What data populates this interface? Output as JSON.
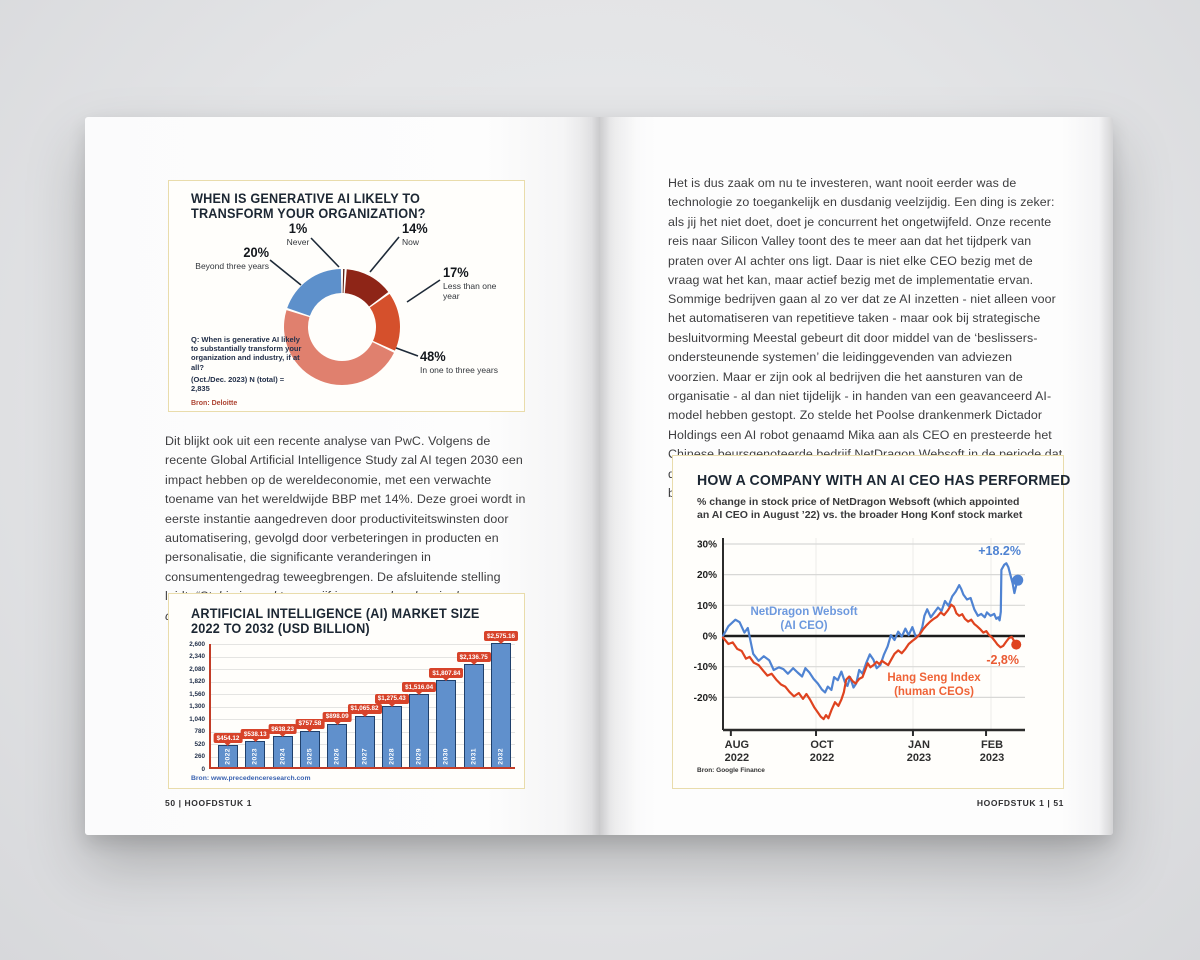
{
  "book": {
    "left_footer": "50 | HOOFDSTUK 1",
    "right_footer": "HOOFDSTUK 1 | 51"
  },
  "left_page": {
    "body": {
      "text": "Dit blijkt ook uit een recente analyse van PwC. Volgens de recente Global Artificial Intelligence Study zal AI tegen 2030 een impact hebben op de wereldeconomie, met een verwachte toename van het wereldwijde BBP met 14%. Deze groei wordt in eerste instantie aangedreven door productiviteitswinsten door automatisering, gevolgd door verbeteringen in producten en personalisatie, die significante veranderingen in consumentengedrag teweegbrengen. De afsluitende stelling luidt: ",
      "quote": "“Stel je je markt over vijf jaar voor: hoe kun je de capaciteiten creëren om te concurreren?”"
    }
  },
  "right_page": {
    "para1": "Het is dus zaak om nu te investeren, want nooit eerder was de technologie zo toegankelijk en dusdanig veelzijdig. Een ding is zeker: als jij het niet doet, doet je concurrent het ongetwijfeld. Onze recente reis naar Silicon Valley toont des te meer aan dat het tijdperk van praten over AI achter ons ligt. Daar is niet elke CEO bezig met de vraag wat het kan, maar actief bezig met de implementatie ervan.",
    "para2": "Sommige bedrijven gaan al zo ver dat ze AI inzetten - niet alleen voor het automatiseren van repetitieve taken - maar ook bij strategische besluitvorming Meestal gebeurt dit door middel van de ‘beslissers-ondersteunende systemen’ die leidinggevenden van adviezen voorzien. Maar er zijn ook al bedrijven die het aansturen van de organisatie - al dan niet tijdelijk - in handen van een geavanceerd AI-model hebben gestopt. Zo stelde het Poolse drankenmerk Dictador Holdings een AI robot genaamd Mika aan als CEO en presteerde het Chinese beursgenoteerde bedrijf NetDragon Websoft in de periode dat de AI-CEO aan het roer staat beter op de aandelenmarkt dan de branche-index."
  },
  "chart_data": [
    {
      "type": "pie",
      "title_line1": "WHEN IS GENERATIVE AI LIKELY TO",
      "title_line2": "TRANSFORM YOUR ORGANIZATION?",
      "segments": [
        {
          "label": "Never",
          "value": 1,
          "value_label": "1%",
          "color": "#5a2017"
        },
        {
          "label": "Now",
          "value": 14,
          "value_label": "14%",
          "color": "#8e2517"
        },
        {
          "label": "Less than one year",
          "value": 17,
          "value_label": "17%",
          "color": "#d5502c"
        },
        {
          "label": "In one to three years",
          "value": 48,
          "value_label": "48%",
          "color": "#e0806e"
        },
        {
          "label": "Beyond three years",
          "value": 20,
          "value_label": "20%",
          "color": "#5d90cb"
        }
      ],
      "question": "Q: When is generative AI likely to substantially transform your organization and industry, if at all?",
      "note": "(Oct./Dec. 2023) N (total) = 2,835",
      "source": "Bron: Deloitte"
    },
    {
      "type": "bar",
      "title_line1": "ARTIFICIAL INTELLIGENCE (AI) MARKET SIZE",
      "title_line2": "2022 TO 2032 (USD BILLION)",
      "categories": [
        "2022",
        "2023",
        "2024",
        "2025",
        "2026",
        "2027",
        "2028",
        "2029",
        "2030",
        "2031",
        "2032"
      ],
      "values": [
        454.12,
        538.13,
        638.23,
        757.58,
        898.09,
        1065.82,
        1275.43,
        1516.04,
        1807.84,
        2136.75,
        2575.16
      ],
      "value_labels": [
        "$454.12",
        "$538.13",
        "$638.23",
        "$757.58",
        "$898.09",
        "$1,065.82",
        "$1,275.43",
        "$1,516.04",
        "$1,807.84",
        "$2,136.75",
        "$2,575.16"
      ],
      "y_ticks_top_to_bottom": [
        "2,600",
        "2,340",
        "2,080",
        "1,820",
        "1,560",
        "1,300",
        "1,040",
        "780",
        "520",
        "260",
        "0"
      ],
      "ylim": [
        0,
        2600
      ],
      "source": "Bron: www.precedenceresearch.com"
    },
    {
      "type": "line",
      "title": "HOW A COMPANY WITH AN AI CEO HAS PERFORMED",
      "subtitle": "% change in stock price of NetDragon Websoft (which appointed an AI CEO in August ’22) vs. the broader Hong Konf stock market",
      "y_tick_labels": [
        "30%",
        "20%",
        "10%",
        "0%",
        "-10%",
        "-20%"
      ],
      "y_tick_values": [
        30,
        20,
        10,
        0,
        -10,
        -20
      ],
      "ylim": [
        -30,
        32
      ],
      "x_ticks": [
        {
          "line1": "AUG",
          "line2": "2022",
          "x": 2.6
        },
        {
          "line1": "OCT",
          "line2": "2022",
          "x": 30.8
        },
        {
          "line1": "JAN",
          "line2": "2023",
          "x": 62.9
        },
        {
          "line1": "FEB",
          "line2": "2023",
          "x": 87.1
        }
      ],
      "series": [
        {
          "name": "NetDragon Websoft (AI CEO)",
          "label_line1": "NetDragon Websoft",
          "label_line2": "(AI CEO)",
          "color": "#4f83d2",
          "end_label": "+18.2%",
          "points": [
            [
              0,
              0
            ],
            [
              1.8,
              3.2
            ],
            [
              4.1,
              5.3
            ],
            [
              5.5,
              4.5
            ],
            [
              7.1,
              1.1
            ],
            [
              8.2,
              2.6
            ],
            [
              10,
              -5.8
            ],
            [
              11.8,
              -8.1
            ],
            [
              13.5,
              -6.6
            ],
            [
              15.3,
              -7.9
            ],
            [
              16.8,
              -11.1
            ],
            [
              18.5,
              -10.2
            ],
            [
              20,
              -10.8
            ],
            [
              21.5,
              -12.3
            ],
            [
              23.2,
              -10.5
            ],
            [
              24.7,
              -11.9
            ],
            [
              26.2,
              -13.2
            ],
            [
              27.3,
              -10.5
            ],
            [
              28.6,
              -11.9
            ],
            [
              30,
              -14
            ],
            [
              31.4,
              -15.5
            ],
            [
              32.7,
              -17.4
            ],
            [
              33.8,
              -18.4
            ],
            [
              34.7,
              -16.5
            ],
            [
              35.9,
              -17.6
            ],
            [
              36.8,
              -13.4
            ],
            [
              38,
              -14.4
            ],
            [
              39.2,
              -11.6
            ],
            [
              40.4,
              -15.1
            ],
            [
              41.2,
              -16.3
            ],
            [
              42.1,
              -13.4
            ],
            [
              43.2,
              -16.8
            ],
            [
              44.1,
              -15.5
            ],
            [
              45.1,
              -11.1
            ],
            [
              46.2,
              -12.3
            ],
            [
              47.4,
              -8.9
            ],
            [
              48.6,
              -6
            ],
            [
              49.8,
              -7.7
            ],
            [
              50.9,
              -10.5
            ],
            [
              52.1,
              -9.5
            ],
            [
              53.3,
              -6
            ],
            [
              54.5,
              -3.4
            ],
            [
              55.6,
              0.3
            ],
            [
              56.8,
              -1.3
            ],
            [
              58,
              1.4
            ],
            [
              59.2,
              -0.2
            ],
            [
              60.4,
              2.4
            ],
            [
              61.5,
              0.3
            ],
            [
              62.7,
              2.9
            ],
            [
              63.9,
              -0.5
            ],
            [
              65.1,
              0.5
            ],
            [
              66,
              2.9
            ],
            [
              66.7,
              6.6
            ],
            [
              67.6,
              8.7
            ],
            [
              68.8,
              6.1
            ],
            [
              70,
              7.7
            ],
            [
              71.2,
              9.3
            ],
            [
              72.4,
              8.2
            ],
            [
              73.5,
              11.4
            ],
            [
              74.7,
              9.8
            ],
            [
              75.9,
              12.9
            ],
            [
              77.1,
              14.5
            ],
            [
              78.2,
              16.6
            ],
            [
              78.9,
              15.3
            ],
            [
              79.6,
              13.5
            ],
            [
              80.8,
              11.9
            ],
            [
              82,
              12.4
            ],
            [
              83.2,
              8.7
            ],
            [
              84.4,
              6.6
            ],
            [
              85.5,
              7.2
            ],
            [
              86.7,
              6.1
            ],
            [
              87.4,
              7.7
            ],
            [
              88.6,
              6.6
            ],
            [
              89.8,
              7.2
            ],
            [
              90.5,
              5.6
            ],
            [
              91.2,
              6.1
            ],
            [
              91.6,
              5.1
            ],
            [
              92,
              7.9
            ],
            [
              92.2,
              21.6
            ],
            [
              93.1,
              23.2
            ],
            [
              93.8,
              23.7
            ],
            [
              94.5,
              22.4
            ],
            [
              95.2,
              19.8
            ],
            [
              95.9,
              17.2
            ],
            [
              96.5,
              14
            ],
            [
              97.1,
              16.5
            ],
            [
              97.6,
              18.2
            ]
          ]
        },
        {
          "name": "Hang Seng Index (human CEOs)",
          "label_line1": "Hang Seng Index",
          "label_line2": "(human CEOs)",
          "color": "#df431f",
          "end_label": "-2,8%",
          "points": [
            [
              0,
              -0.5
            ],
            [
              1.8,
              -2.6
            ],
            [
              3.2,
              -2.1
            ],
            [
              4.7,
              -4.2
            ],
            [
              6.2,
              -4.9
            ],
            [
              7.6,
              -7.4
            ],
            [
              8.8,
              -6.8
            ],
            [
              10.2,
              -8.7
            ],
            [
              11.8,
              -9.5
            ],
            [
              13.3,
              -11.3
            ],
            [
              14.7,
              -12.9
            ],
            [
              16.1,
              -12.3
            ],
            [
              17.6,
              -14.2
            ],
            [
              19.2,
              -15.8
            ],
            [
              20.6,
              -16.5
            ],
            [
              22,
              -18.2
            ],
            [
              23.5,
              -19.7
            ],
            [
              25.1,
              -18.6
            ],
            [
              26.5,
              -20.5
            ],
            [
              27.6,
              -18.9
            ],
            [
              28.8,
              -20.7
            ],
            [
              30.2,
              -23.2
            ],
            [
              31.4,
              -24.9
            ],
            [
              32.4,
              -26.3
            ],
            [
              33.3,
              -27.1
            ],
            [
              34.1,
              -25.8
            ],
            [
              34.9,
              -26.8
            ],
            [
              35.9,
              -24.2
            ],
            [
              37.1,
              -21.6
            ],
            [
              38.2,
              -22.8
            ],
            [
              39.2,
              -20.7
            ],
            [
              40,
              -18.4
            ],
            [
              40.8,
              -14.2
            ],
            [
              41.8,
              -13.2
            ],
            [
              42.9,
              -14.7
            ],
            [
              43.9,
              -15.5
            ],
            [
              45.1,
              -14
            ],
            [
              46.2,
              -13.4
            ],
            [
              47.1,
              -11.1
            ],
            [
              47.9,
              -8.9
            ],
            [
              48.8,
              -10.2
            ],
            [
              49.8,
              -9.5
            ],
            [
              50.9,
              -8.4
            ],
            [
              51.8,
              -9.2
            ],
            [
              52.6,
              -8.1
            ],
            [
              53.5,
              -8.7
            ],
            [
              54.7,
              -9.5
            ],
            [
              55.6,
              -7.9
            ],
            [
              56.8,
              -5.8
            ],
            [
              58,
              -4.7
            ],
            [
              59.2,
              -5.6
            ],
            [
              60.4,
              -4.2
            ],
            [
              61.5,
              -2.6
            ],
            [
              62.7,
              -1.6
            ],
            [
              63.9,
              -0.7
            ],
            [
              65.1,
              0.5
            ],
            [
              66.2,
              2.1
            ],
            [
              67.4,
              3.5
            ],
            [
              68.6,
              4.7
            ],
            [
              69.8,
              5.6
            ],
            [
              70.9,
              6.3
            ],
            [
              72.1,
              7.7
            ],
            [
              73.2,
              6.8
            ],
            [
              74.5,
              8.4
            ],
            [
              75.6,
              10.2
            ],
            [
              76.5,
              9.5
            ],
            [
              77.3,
              7.4
            ],
            [
              78.2,
              6.6
            ],
            [
              79.2,
              7.1
            ],
            [
              80.1,
              5.6
            ],
            [
              81.2,
              4.7
            ],
            [
              82.2,
              5.3
            ],
            [
              83.2,
              3.9
            ],
            [
              84.1,
              3.2
            ],
            [
              85.3,
              2.1
            ],
            [
              86.2,
              1.1
            ],
            [
              87.2,
              1.6
            ],
            [
              88.1,
              0.3
            ],
            [
              89.1,
              -0.5
            ],
            [
              90,
              -1.6
            ],
            [
              90.9,
              -2.8
            ],
            [
              91.9,
              -3.7
            ],
            [
              92.8,
              -3.2
            ],
            [
              93.8,
              -1.8
            ],
            [
              94.7,
              -0.7
            ],
            [
              95.6,
              -0.3
            ],
            [
              96.4,
              -1.6
            ],
            [
              97.1,
              -2.8
            ]
          ]
        }
      ],
      "source": "Bron: Google Finance"
    }
  ]
}
